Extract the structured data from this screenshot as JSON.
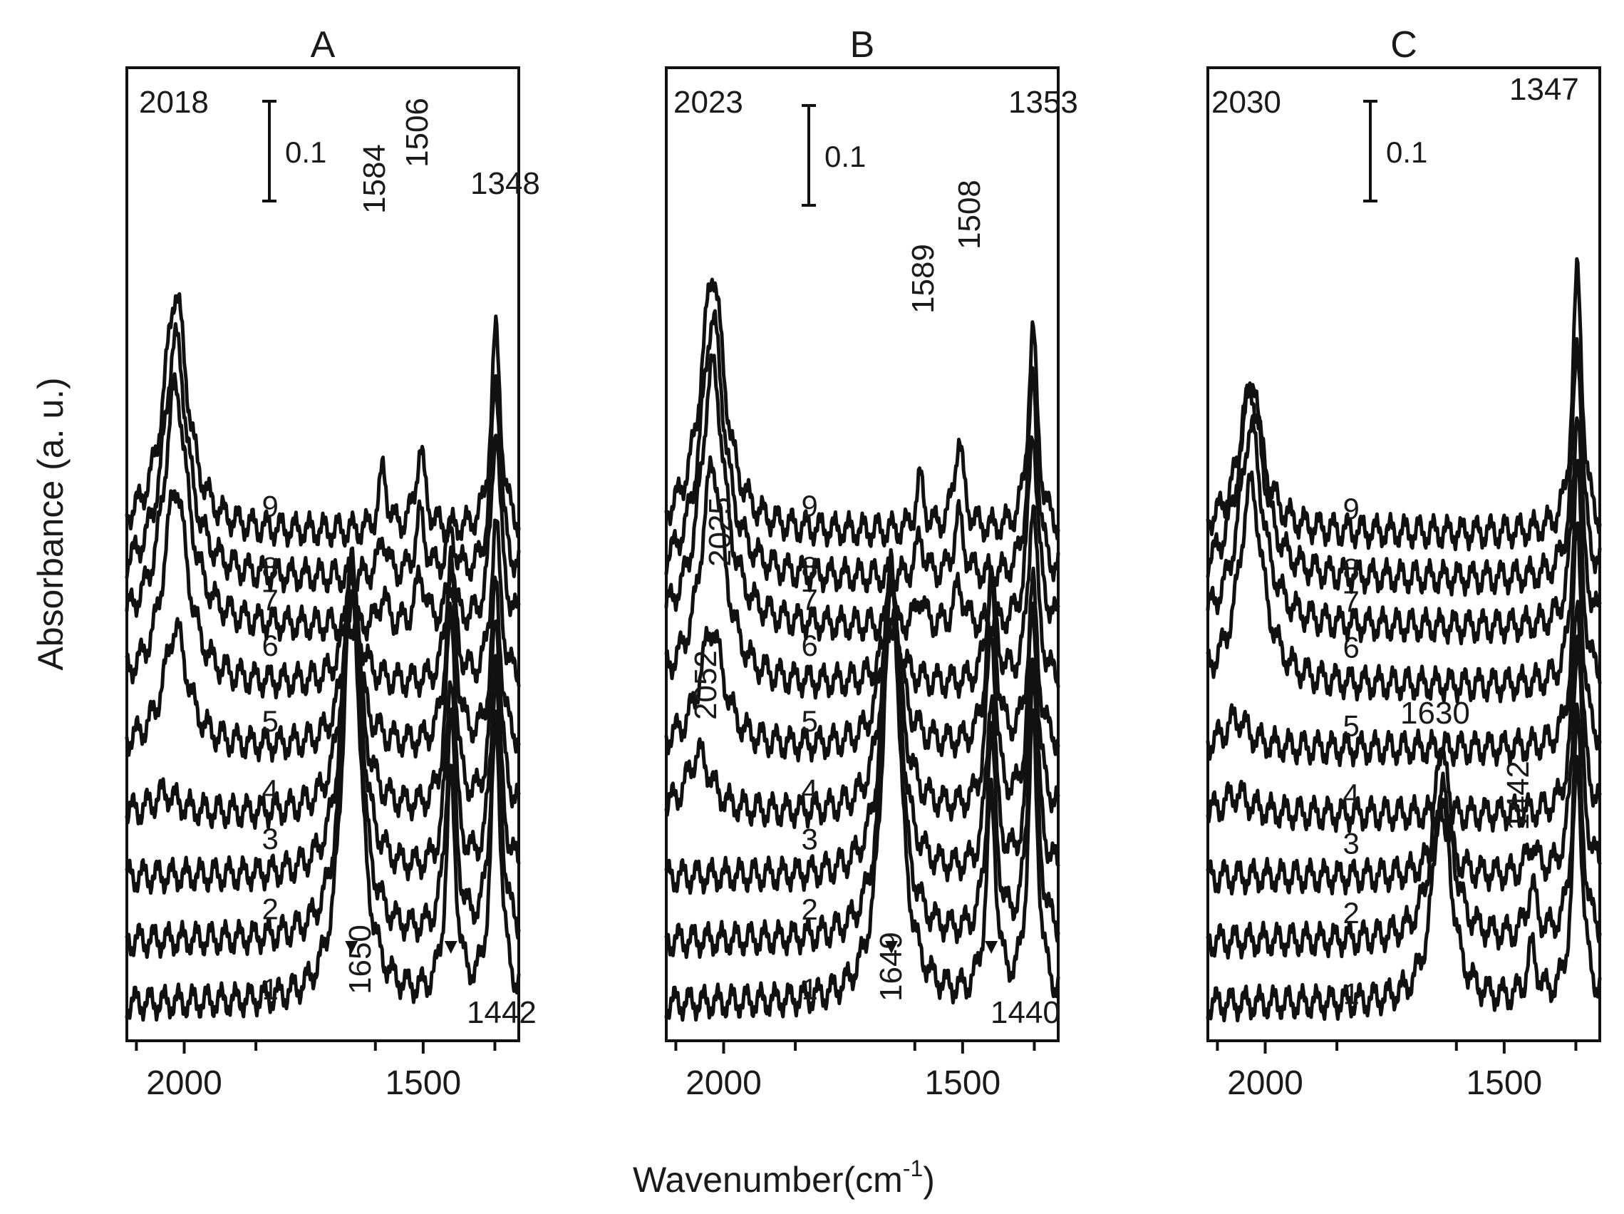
{
  "chart_data": {
    "type": "line",
    "xlabel": "Wavenumber(cm",
    "xlabel_superscript": "-1",
    "xlabel_suffix": ")",
    "ylabel": "Absorbance (a. u.)",
    "x_direction": "reversed",
    "xlim": [
      2120,
      1300
    ],
    "x_ticks": [
      2000,
      1500
    ],
    "x_tick_labels": [
      "2000",
      "1500"
    ],
    "panels": [
      {
        "title": "A",
        "scale_bar_label": "0.1",
        "scale_bar_value": 0.1,
        "series": [
          {
            "name": "1",
            "peaks": [
              {
                "x": 1650,
                "h": 0.44,
                "w": 22
              },
              {
                "x": 1442,
                "h": 0.22,
                "w": 12
              },
              {
                "x": 1348,
                "h": 0.28,
                "w": 12
              }
            ]
          },
          {
            "name": "2",
            "peaks": [
              {
                "x": 1650,
                "h": 0.38,
                "w": 22
              },
              {
                "x": 1442,
                "h": 0.22,
                "w": 12
              },
              {
                "x": 1348,
                "h": 0.26,
                "w": 12
              }
            ]
          },
          {
            "name": "3",
            "peaks": [
              {
                "x": 1650,
                "h": 0.32,
                "w": 22
              },
              {
                "x": 1442,
                "h": 0.2,
                "w": 12
              },
              {
                "x": 1348,
                "h": 0.22,
                "w": 12
              }
            ]
          },
          {
            "name": "4",
            "peaks": [
              {
                "x": 2040,
                "h": 0.02,
                "w": 30
              },
              {
                "x": 1650,
                "h": 0.24,
                "w": 22
              },
              {
                "x": 1442,
                "h": 0.2,
                "w": 12
              },
              {
                "x": 1348,
                "h": 0.2,
                "w": 12
              }
            ]
          },
          {
            "name": "5",
            "peaks": [
              {
                "x": 2018,
                "h": 0.12,
                "w": 30
              },
              {
                "x": 1650,
                "h": 0.14,
                "w": 22
              },
              {
                "x": 1442,
                "h": 0.18,
                "w": 12
              },
              {
                "x": 1348,
                "h": 0.16,
                "w": 12
              }
            ]
          },
          {
            "name": "6",
            "peaks": [
              {
                "x": 2018,
                "h": 0.2,
                "w": 30
              },
              {
                "x": 1650,
                "h": 0.08,
                "w": 22
              },
              {
                "x": 1442,
                "h": 0.12,
                "w": 12
              },
              {
                "x": 1348,
                "h": 0.16,
                "w": 12
              }
            ]
          },
          {
            "name": "7",
            "peaks": [
              {
                "x": 2018,
                "h": 0.24,
                "w": 30
              },
              {
                "x": 1584,
                "h": 0.03,
                "w": 10
              },
              {
                "x": 1506,
                "h": 0.05,
                "w": 12
              },
              {
                "x": 1442,
                "h": 0.04,
                "w": 12
              },
              {
                "x": 1348,
                "h": 0.2,
                "w": 12
              }
            ]
          },
          {
            "name": "8",
            "peaks": [
              {
                "x": 2018,
                "h": 0.24,
                "w": 30
              },
              {
                "x": 1584,
                "h": 0.04,
                "w": 10
              },
              {
                "x": 1506,
                "h": 0.06,
                "w": 12
              },
              {
                "x": 1442,
                "h": 0.04,
                "w": 12
              },
              {
                "x": 1348,
                "h": 0.2,
                "w": 12
              }
            ]
          },
          {
            "name": "9",
            "peaks": [
              {
                "x": 2018,
                "h": 0.24,
                "w": 30
              },
              {
                "x": 1584,
                "h": 0.06,
                "w": 10
              },
              {
                "x": 1506,
                "h": 0.08,
                "w": 12
              },
              {
                "x": 1348,
                "h": 0.2,
                "w": 12
              }
            ]
          }
        ],
        "annotations": [
          {
            "text": "2018",
            "x": 2018
          },
          {
            "text": "1584",
            "x": 1584,
            "rotated": true
          },
          {
            "text": "1506",
            "x": 1506,
            "rotated": true
          },
          {
            "text": "1348",
            "x": 1348
          },
          {
            "text": "1650",
            "x": 1650,
            "rotated": true,
            "arrow": true
          },
          {
            "text": "1442",
            "x": 1442,
            "arrow": true
          }
        ]
      },
      {
        "title": "B",
        "scale_bar_label": "0.1",
        "scale_bar_value": 0.1,
        "series": [
          {
            "name": "1",
            "peaks": [
              {
                "x": 1649,
                "h": 0.44,
                "w": 22
              },
              {
                "x": 1440,
                "h": 0.2,
                "w": 12
              },
              {
                "x": 1353,
                "h": 0.28,
                "w": 12
              }
            ]
          },
          {
            "name": "2",
            "peaks": [
              {
                "x": 1649,
                "h": 0.36,
                "w": 22
              },
              {
                "x": 1440,
                "h": 0.2,
                "w": 12
              },
              {
                "x": 1353,
                "h": 0.26,
                "w": 12
              }
            ]
          },
          {
            "name": "3",
            "peaks": [
              {
                "x": 1649,
                "h": 0.3,
                "w": 22
              },
              {
                "x": 1440,
                "h": 0.18,
                "w": 12
              },
              {
                "x": 1353,
                "h": 0.22,
                "w": 12
              }
            ]
          },
          {
            "name": "4",
            "peaks": [
              {
                "x": 2052,
                "h": 0.06,
                "w": 30
              },
              {
                "x": 1649,
                "h": 0.24,
                "w": 22
              },
              {
                "x": 1440,
                "h": 0.18,
                "w": 12
              },
              {
                "x": 1353,
                "h": 0.2,
                "w": 12
              }
            ]
          },
          {
            "name": "5",
            "peaks": [
              {
                "x": 2025,
                "h": 0.12,
                "w": 30
              },
              {
                "x": 1649,
                "h": 0.16,
                "w": 22
              },
              {
                "x": 1440,
                "h": 0.16,
                "w": 12
              },
              {
                "x": 1353,
                "h": 0.16,
                "w": 12
              }
            ]
          },
          {
            "name": "6",
            "peaks": [
              {
                "x": 2023,
                "h": 0.22,
                "w": 30
              },
              {
                "x": 1649,
                "h": 0.06,
                "w": 22
              },
              {
                "x": 1440,
                "h": 0.1,
                "w": 12
              },
              {
                "x": 1353,
                "h": 0.18,
                "w": 12
              }
            ]
          },
          {
            "name": "7",
            "peaks": [
              {
                "x": 2023,
                "h": 0.26,
                "w": 30
              },
              {
                "x": 1589,
                "h": 0.03,
                "w": 10
              },
              {
                "x": 1508,
                "h": 0.04,
                "w": 12
              },
              {
                "x": 1353,
                "h": 0.2,
                "w": 12
              }
            ]
          },
          {
            "name": "8",
            "peaks": [
              {
                "x": 2023,
                "h": 0.26,
                "w": 30
              },
              {
                "x": 1589,
                "h": 0.04,
                "w": 10
              },
              {
                "x": 1508,
                "h": 0.06,
                "w": 12
              },
              {
                "x": 1353,
                "h": 0.2,
                "w": 12
              }
            ]
          },
          {
            "name": "9",
            "peaks": [
              {
                "x": 2023,
                "h": 0.26,
                "w": 30
              },
              {
                "x": 1589,
                "h": 0.05,
                "w": 10
              },
              {
                "x": 1508,
                "h": 0.09,
                "w": 12
              },
              {
                "x": 1353,
                "h": 0.2,
                "w": 12
              }
            ]
          }
        ],
        "annotations": [
          {
            "text": "2023",
            "x": 2023
          },
          {
            "text": "1589",
            "x": 1589,
            "rotated": true
          },
          {
            "text": "1508",
            "x": 1508,
            "rotated": true
          },
          {
            "text": "1353",
            "x": 1353
          },
          {
            "text": "2025",
            "x": 2025,
            "rotated": true
          },
          {
            "text": "2052",
            "x": 2052,
            "rotated": true
          },
          {
            "text": "1649",
            "x": 1649,
            "rotated": true,
            "arrow": true
          },
          {
            "text": "1440",
            "x": 1440,
            "arrow": true
          }
        ]
      },
      {
        "title": "C",
        "scale_bar_label": "0.1",
        "scale_bar_value": 0.1,
        "series": [
          {
            "name": "1",
            "peaks": [
              {
                "x": 1630,
                "h": 0.22,
                "w": 22
              },
              {
                "x": 1442,
                "h": 0.05,
                "w": 12
              },
              {
                "x": 1347,
                "h": 0.24,
                "w": 12
              }
            ]
          },
          {
            "name": "2",
            "peaks": [
              {
                "x": 1630,
                "h": 0.2,
                "w": 22
              },
              {
                "x": 1442,
                "h": 0.05,
                "w": 12
              },
              {
                "x": 1347,
                "h": 0.22,
                "w": 12
              }
            ]
          },
          {
            "name": "3",
            "peaks": [
              {
                "x": 1630,
                "h": 0.06,
                "w": 22
              },
              {
                "x": 1442,
                "h": 0.03,
                "w": 12
              },
              {
                "x": 1347,
                "h": 0.24,
                "w": 12
              }
            ]
          },
          {
            "name": "4",
            "peaks": [
              {
                "x": 2060,
                "h": 0.02,
                "w": 30
              },
              {
                "x": 1347,
                "h": 0.22,
                "w": 12
              }
            ]
          },
          {
            "name": "5",
            "peaks": [
              {
                "x": 2060,
                "h": 0.03,
                "w": 30
              },
              {
                "x": 1347,
                "h": 0.22,
                "w": 12
              }
            ]
          },
          {
            "name": "6",
            "peaks": [
              {
                "x": 2030,
                "h": 0.2,
                "w": 30
              },
              {
                "x": 1347,
                "h": 0.22,
                "w": 12
              }
            ]
          },
          {
            "name": "7",
            "peaks": [
              {
                "x": 2030,
                "h": 0.2,
                "w": 30
              },
              {
                "x": 1347,
                "h": 0.22,
                "w": 12
              }
            ]
          },
          {
            "name": "8",
            "peaks": [
              {
                "x": 2030,
                "h": 0.2,
                "w": 30
              },
              {
                "x": 1347,
                "h": 0.24,
                "w": 12
              }
            ]
          },
          {
            "name": "9",
            "peaks": [
              {
                "x": 2030,
                "h": 0.14,
                "w": 30
              },
              {
                "x": 1347,
                "h": 0.26,
                "w": 12
              }
            ]
          }
        ],
        "annotations": [
          {
            "text": "2030",
            "x": 2030
          },
          {
            "text": "1347",
            "x": 1347
          },
          {
            "text": "1630",
            "x": 1630
          },
          {
            "text": "1442",
            "x": 1442,
            "rotated": true
          }
        ]
      }
    ]
  }
}
